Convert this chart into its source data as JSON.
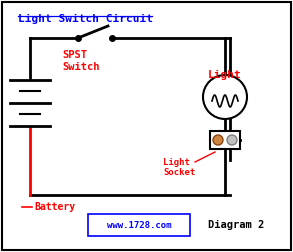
{
  "title": "Light Switch Circuit",
  "bg_color": "#ffffff",
  "border_color": "#000000",
  "wire_color": "#000000",
  "title_color": "#0000ff",
  "label_color_red": "#ff0000",
  "label_color_black": "#000000",
  "url_text": "www.1728.com",
  "diagram_label": "Diagram 2",
  "battery_label": "Battery",
  "spst_label": "SPST\nSwitch",
  "light_label": "Light",
  "socket_label": "Light\nSocket"
}
